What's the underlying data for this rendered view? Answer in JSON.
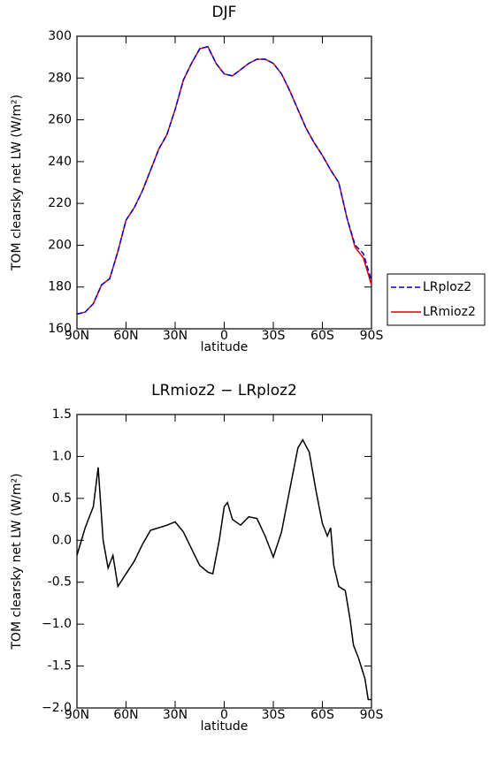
{
  "chart_data": [
    {
      "type": "line",
      "title": "DJF",
      "xlabel": "latitude",
      "ylabel": "TOM clearsky net LW (W/m²)",
      "x": [
        90,
        85,
        80,
        75,
        70,
        65,
        60,
        55,
        50,
        45,
        40,
        35,
        30,
        25,
        20,
        15,
        10,
        5,
        0,
        -5,
        -10,
        -15,
        -20,
        -25,
        -30,
        -35,
        -40,
        -45,
        -50,
        -55,
        -60,
        -65,
        -70,
        -75,
        -80,
        -85,
        -90
      ],
      "series": [
        {
          "name": "LRploz2",
          "color": "#0000cc",
          "linestyle": "dashed",
          "values": [
            167,
            168,
            172,
            181,
            184,
            197,
            212,
            218,
            226,
            236,
            246,
            253,
            265,
            279,
            287,
            294,
            295,
            287,
            282,
            281,
            284,
            287,
            289,
            289,
            287,
            282,
            274,
            265,
            256,
            249,
            243,
            236,
            230,
            213,
            200,
            196,
            183
          ]
        },
        {
          "name": "LRmioz2",
          "color": "#e00000",
          "linestyle": "solid",
          "values": [
            167,
            168,
            172,
            181,
            184,
            197,
            212,
            218,
            226,
            236,
            246,
            253,
            265,
            279,
            287,
            294,
            295,
            287,
            282,
            281,
            284,
            287,
            289,
            289,
            287,
            282,
            274,
            265,
            256,
            249,
            243,
            236,
            230,
            213,
            199,
            194,
            181
          ]
        }
      ],
      "xlim": [
        90,
        -90
      ],
      "xticks": [
        {
          "value": 90,
          "label": "90N"
        },
        {
          "value": 60,
          "label": "60N"
        },
        {
          "value": 30,
          "label": "30N"
        },
        0,
        {
          "value": -30,
          "label": "30S"
        },
        {
          "value": -60,
          "label": "60S"
        },
        {
          "value": -90,
          "label": "90S"
        }
      ],
      "ylim": [
        160,
        300
      ],
      "yticks": [
        160,
        180,
        200,
        220,
        240,
        260,
        280,
        300
      ],
      "legend": "right"
    },
    {
      "type": "line",
      "title": "LRmioz2 − LRploz2",
      "xlabel": "latitude",
      "ylabel": "TOM clearsky net LW (W/m²)",
      "x": [
        90,
        85,
        80,
        77,
        74,
        71,
        68,
        65,
        60,
        55,
        50,
        45,
        40,
        35,
        30,
        25,
        20,
        15,
        10,
        7,
        3,
        0,
        -2,
        -5,
        -10,
        -15,
        -20,
        -25,
        -30,
        -35,
        -40,
        -45,
        -48,
        -52,
        -56,
        -60,
        -63,
        -65,
        -67,
        -70,
        -74,
        -77,
        -79,
        -82,
        -86,
        -88,
        -90
      ],
      "color": "#000000",
      "values": [
        -0.18,
        0.15,
        0.4,
        0.87,
        0.0,
        -0.33,
        -0.18,
        -0.55,
        -0.4,
        -0.25,
        -0.05,
        0.12,
        0.15,
        0.18,
        0.22,
        0.1,
        -0.1,
        -0.3,
        -0.38,
        -0.4,
        0.0,
        0.4,
        0.45,
        0.25,
        0.18,
        0.28,
        0.26,
        0.05,
        -0.2,
        0.1,
        0.6,
        1.1,
        1.2,
        1.05,
        0.6,
        0.2,
        0.05,
        0.15,
        -0.3,
        -0.55,
        -0.6,
        -0.95,
        -1.25,
        -1.4,
        -1.65,
        -1.9,
        -1.9
      ],
      "xlim": [
        90,
        -90
      ],
      "xticks": [
        {
          "value": 90,
          "label": "90N"
        },
        {
          "value": 60,
          "label": "60N"
        },
        {
          "value": 30,
          "label": "30N"
        },
        0,
        {
          "value": -30,
          "label": "30S"
        },
        {
          "value": -60,
          "label": "60S"
        },
        {
          "value": -90,
          "label": "90S"
        }
      ],
      "ylim": [
        -2.0,
        1.5
      ],
      "yticks": [
        {
          "value": -2.0,
          "label": "−2.0"
        },
        -1.5,
        {
          "value": -1.0,
          "label": "−1.0"
        },
        -0.5,
        {
          "value": 0.0,
          "label": "0.0"
        },
        0.5,
        {
          "value": 1.0,
          "label": "1.0"
        },
        1.5
      ]
    }
  ]
}
